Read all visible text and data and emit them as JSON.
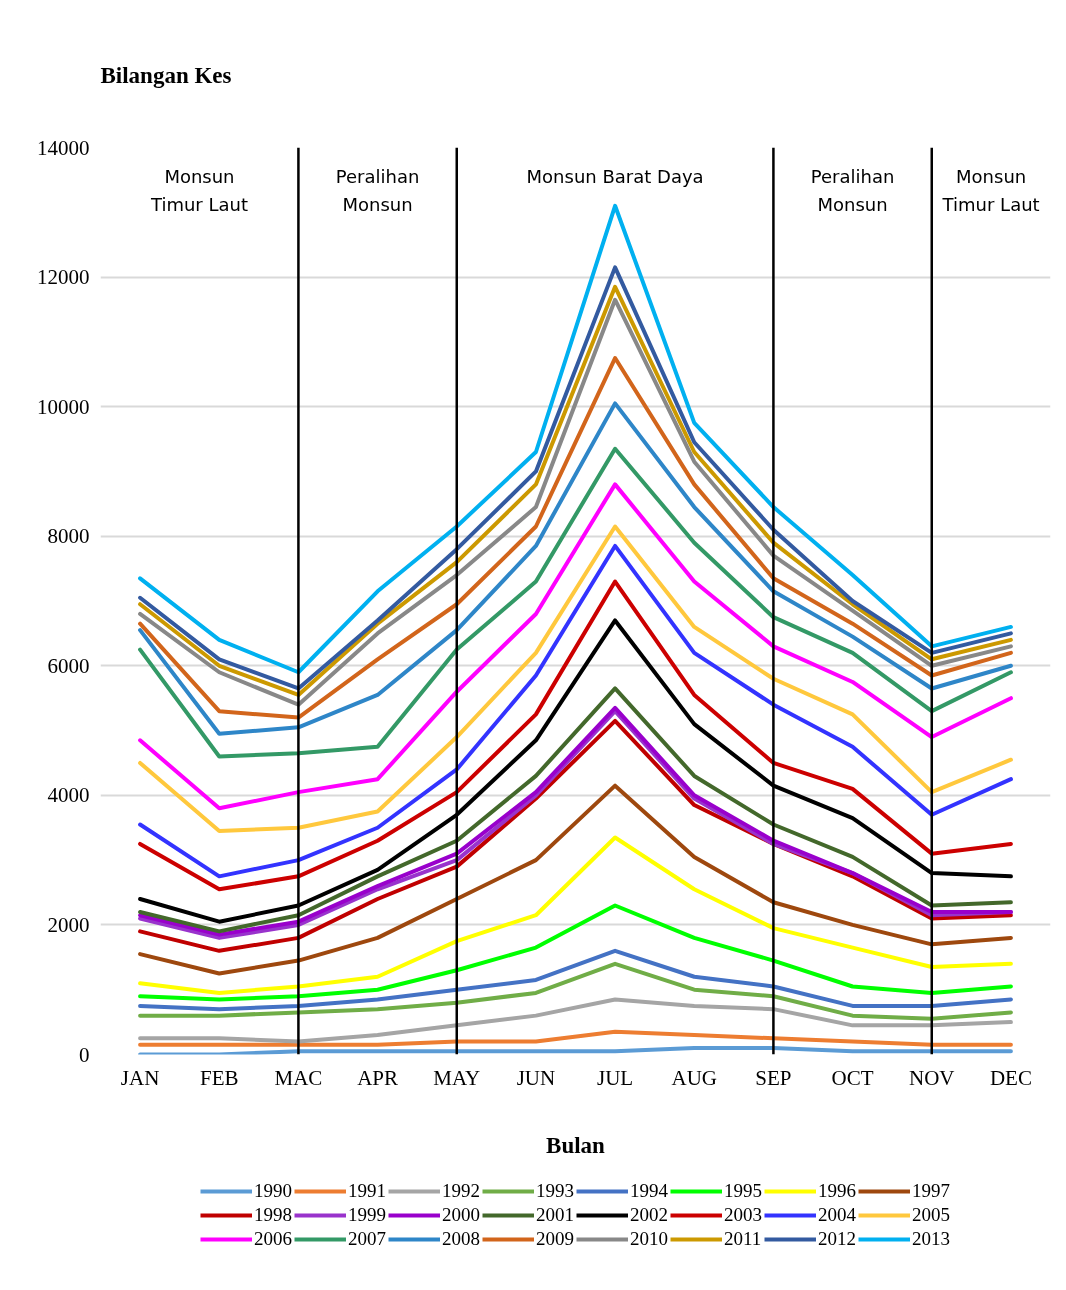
{
  "chart_data": {
    "type": "line",
    "ylabel": "Bilangan Kes",
    "xlabel": "Bulan",
    "categories": [
      "JAN",
      "FEB",
      "MAC",
      "APR",
      "MAY",
      "JUN",
      "JUL",
      "AUG",
      "SEP",
      "OCT",
      "NOV",
      "DEC"
    ],
    "ylim": [
      0,
      14000
    ],
    "yticks": [
      0,
      2000,
      4000,
      6000,
      8000,
      10000,
      12000,
      14000
    ],
    "grid": "y",
    "legend": "bottom",
    "line_style": "solid",
    "ref_lines": [
      {
        "axis": "x",
        "value": "MAC",
        "color": "#000000"
      },
      {
        "axis": "x",
        "value": "MAY",
        "color": "#000000"
      },
      {
        "axis": "x",
        "value": "SEP",
        "color": "#000000"
      },
      {
        "axis": "x",
        "value": "NOV",
        "color": "#000000"
      }
    ],
    "annotations": [
      "Monsun\nTimur Laut",
      "Peralihan\nMonsun",
      "Monsun Barat Daya",
      "Peralihan\nMonsun",
      "Monsun\nTimur Laut"
    ],
    "series": [
      {
        "name": "1990",
        "color": "#5b9bd5",
        "values": [
          0,
          0,
          50,
          50,
          50,
          50,
          50,
          100,
          100,
          50,
          50,
          50
        ]
      },
      {
        "name": "1991",
        "color": "#ed7d31",
        "values": [
          150,
          150,
          150,
          150,
          200,
          200,
          350,
          300,
          250,
          200,
          150,
          150
        ]
      },
      {
        "name": "1992",
        "color": "#a5a5a5",
        "values": [
          250,
          250,
          200,
          300,
          450,
          600,
          850,
          750,
          700,
          450,
          450,
          500
        ]
      },
      {
        "name": "1993",
        "color": "#70ad47",
        "values": [
          600,
          600,
          650,
          700,
          800,
          950,
          1400,
          1000,
          900,
          600,
          550,
          650
        ]
      },
      {
        "name": "1994",
        "color": "#4472c4",
        "values": [
          750,
          700,
          750,
          850,
          1000,
          1150,
          1600,
          1200,
          1050,
          750,
          750,
          850
        ]
      },
      {
        "name": "1995",
        "color": "#00ff00",
        "values": [
          900,
          850,
          900,
          1000,
          1300,
          1650,
          2300,
          1800,
          1450,
          1050,
          950,
          1050
        ]
      },
      {
        "name": "1996",
        "color": "#ffff00",
        "values": [
          1100,
          950,
          1050,
          1200,
          1750,
          2150,
          3350,
          2550,
          1950,
          1650,
          1350,
          1400
        ]
      },
      {
        "name": "1997",
        "color": "#9e480e",
        "values": [
          1550,
          1250,
          1450,
          1800,
          2400,
          3000,
          4150,
          3050,
          2350,
          2000,
          1700,
          1800
        ]
      },
      {
        "name": "1998",
        "color": "#c00000",
        "values": [
          1900,
          1600,
          1800,
          2400,
          2900,
          3950,
          5150,
          3850,
          3250,
          2750,
          2100,
          2150
        ]
      },
      {
        "name": "1999",
        "color": "#9933cc",
        "values": [
          2100,
          1800,
          2000,
          2550,
          3000,
          4000,
          5300,
          3950,
          3250,
          2800,
          2150,
          2200
        ]
      },
      {
        "name": "2000",
        "color": "#9900cc",
        "values": [
          2150,
          1850,
          2050,
          2600,
          3100,
          4050,
          5350,
          4000,
          3300,
          2800,
          2200,
          2200
        ]
      },
      {
        "name": "2001",
        "color": "#43682b",
        "values": [
          2200,
          1900,
          2150,
          2750,
          3300,
          4300,
          5650,
          4300,
          3550,
          3050,
          2300,
          2350
        ]
      },
      {
        "name": "2002",
        "color": "#000000",
        "values": [
          2400,
          2050,
          2300,
          2850,
          3700,
          4850,
          6700,
          5100,
          4150,
          3650,
          2800,
          2750
        ]
      },
      {
        "name": "2003",
        "color": "#cc0000",
        "values": [
          3250,
          2550,
          2750,
          3300,
          4050,
          5250,
          7300,
          5550,
          4500,
          4100,
          3100,
          3250
        ]
      },
      {
        "name": "2004",
        "color": "#3333ff",
        "values": [
          3550,
          2750,
          3000,
          3500,
          4400,
          5850,
          7850,
          6200,
          5400,
          4750,
          3700,
          4250
        ]
      },
      {
        "name": "2005",
        "color": "#ffc83d",
        "values": [
          4500,
          3450,
          3500,
          3750,
          4900,
          6200,
          8150,
          6600,
          5800,
          5250,
          4050,
          4550
        ]
      },
      {
        "name": "2006",
        "color": "#ff00ff",
        "values": [
          4850,
          3800,
          4050,
          4250,
          5600,
          6800,
          8800,
          7300,
          6300,
          5750,
          4900,
          5500
        ]
      },
      {
        "name": "2007",
        "color": "#339966",
        "values": [
          6250,
          4600,
          4650,
          4750,
          6250,
          7300,
          9350,
          7900,
          6750,
          6200,
          5300,
          5900
        ]
      },
      {
        "name": "2008",
        "color": "#2e86c8",
        "values": [
          6550,
          4950,
          5050,
          5550,
          6550,
          7850,
          10050,
          8450,
          7150,
          6450,
          5650,
          6000
        ]
      },
      {
        "name": "2009",
        "color": "#d2651b",
        "values": [
          6650,
          5300,
          5200,
          6100,
          6950,
          8150,
          10750,
          8800,
          7350,
          6650,
          5850,
          6200
        ]
      },
      {
        "name": "2010",
        "color": "#888888",
        "values": [
          6800,
          5900,
          5400,
          6500,
          7400,
          8450,
          11650,
          9150,
          7700,
          6850,
          6000,
          6300
        ]
      },
      {
        "name": "2011",
        "color": "#cc9900",
        "values": [
          6950,
          6000,
          5550,
          6650,
          7600,
          8800,
          11850,
          9300,
          7900,
          6950,
          6100,
          6400
        ]
      },
      {
        "name": "2012",
        "color": "#335aa0",
        "values": [
          7050,
          6100,
          5650,
          6700,
          7800,
          9000,
          12150,
          9450,
          8100,
          7000,
          6200,
          6500
        ]
      },
      {
        "name": "2013",
        "color": "#00b0f0",
        "values": [
          7350,
          6400,
          5900,
          7150,
          8150,
          9300,
          13100,
          9750,
          8450,
          7400,
          6300,
          6600
        ]
      }
    ]
  }
}
